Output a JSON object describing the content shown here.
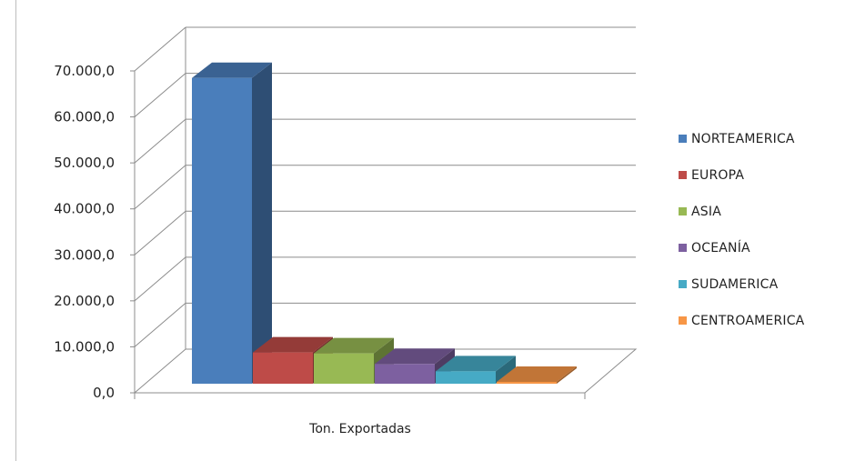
{
  "chart_data": {
    "type": "bar",
    "title": "",
    "xlabel": "",
    "ylabel": "",
    "categories": [
      "Ton. Exportadas"
    ],
    "series": [
      {
        "name": "NORTEAMERICA",
        "values": [
          66500
        ],
        "color": "#4a7ebb"
      },
      {
        "name": "EUROPA",
        "values": [
          6800
        ],
        "color": "#be4b48"
      },
      {
        "name": "ASIA",
        "values": [
          6600
        ],
        "color": "#98b954"
      },
      {
        "name": "OCEANÍA",
        "values": [
          4300
        ],
        "color": "#7d60a0"
      },
      {
        "name": "SUDAMERICA",
        "values": [
          2700
        ],
        "color": "#46aac5"
      },
      {
        "name": "CENTROAMERICA",
        "values": [
          400
        ],
        "color": "#f79646"
      }
    ],
    "ylim": [
      0,
      70000
    ],
    "yticks": [
      0,
      10000,
      20000,
      30000,
      40000,
      50000,
      60000,
      70000
    ],
    "ytick_labels": [
      "0,0",
      "10.000,0",
      "20.000,0",
      "30.000,0",
      "40.000,0",
      "50.000,0",
      "60.000,0",
      "70.000,0"
    ],
    "grid": true,
    "legend_position": "right",
    "three_d": true
  }
}
